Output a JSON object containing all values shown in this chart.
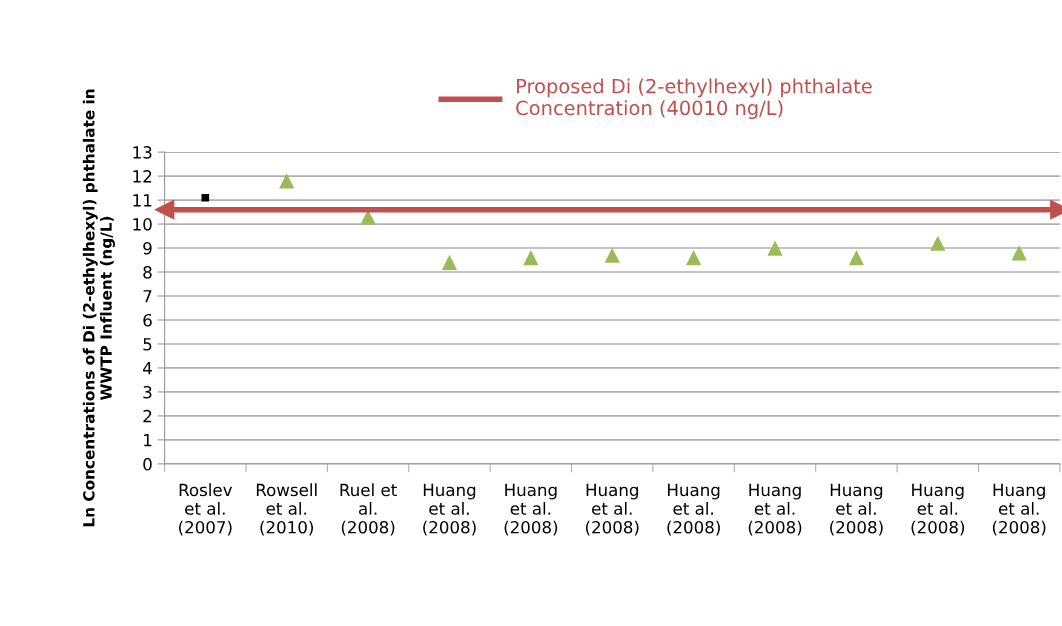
{
  "chart_data": {
    "type": "scatter",
    "ylabel": "Ln Concentrations of Di (2-ethylhexyl) phthalate in\nWWTP Influent (ng/L)",
    "categories": [
      "Roslev\net al.\n(2007)",
      "Rowsell\net al.\n(2010)",
      "Ruel et\nal.\n(2008)",
      "Huang\net al.\n(2008)",
      "Huang\net al.\n(2008)",
      "Huang\net al.\n(2008)",
      "Huang\net al.\n(2008)",
      "Huang\net al.\n(2008)",
      "Huang\net al.\n(2008)",
      "Huang\net al.\n(2008)",
      "Huang\net al.\n(2008)"
    ],
    "series": [
      {
        "color": "#000000",
        "marker": "square",
        "values": [
          11.1,
          null,
          null,
          null,
          null,
          null,
          null,
          null,
          null,
          null,
          null
        ]
      },
      {
        "color": "#9bbb59",
        "marker": "triangle",
        "values": [
          null,
          11.8,
          10.3,
          8.4,
          8.6,
          8.7,
          8.6,
          9.0,
          8.6,
          9.2,
          8.8
        ]
      }
    ],
    "ylim": [
      0,
      13
    ],
    "yticks": [
      0,
      1,
      2,
      3,
      4,
      5,
      6,
      7,
      8,
      9,
      10,
      11,
      12,
      13
    ],
    "grid": "y",
    "legend": "top",
    "ref_lines": [
      {
        "axis": "y",
        "value": 10.6,
        "label": "Proposed Di (2-ethylhexyl) phthalate\nConcentration (40010 ng/L)",
        "color": "#c0504d"
      }
    ]
  }
}
